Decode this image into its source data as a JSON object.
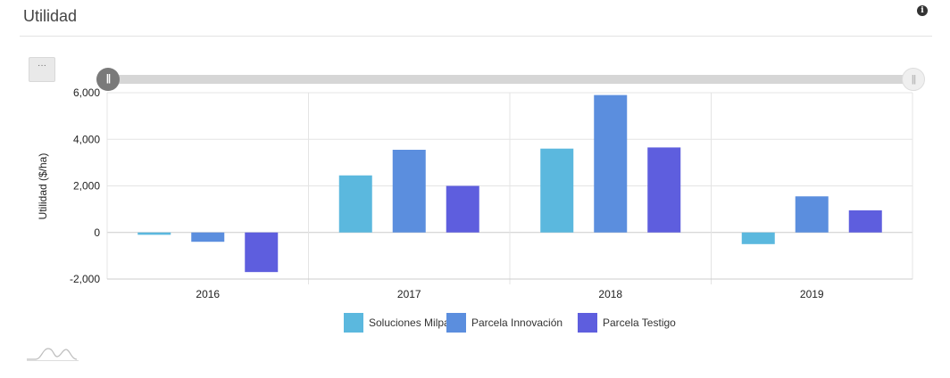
{
  "panel": {
    "title": "Utilidad",
    "info_icon": "info-icon",
    "menu_label": "···",
    "zoom_handle_glyph": "||"
  },
  "chart_data": {
    "type": "bar",
    "title": "",
    "ylabel": "Utilidad ($/ha)",
    "xlabel": "",
    "categories": [
      "2016",
      "2017",
      "2018",
      "2019"
    ],
    "series": [
      {
        "name": "Soluciones Milpa",
        "color": "#5bb8de",
        "values": [
          -100,
          2450,
          3600,
          -500
        ]
      },
      {
        "name": "Parcela Innovación",
        "color": "#5b8ede",
        "values": [
          -400,
          3550,
          5900,
          1550
        ]
      },
      {
        "name": "Parcela Testigo",
        "color": "#5e5ede",
        "values": [
          -1700,
          2000,
          3650,
          950
        ]
      }
    ],
    "ylim": [
      -2000,
      6000
    ],
    "yticks": [
      -2000,
      0,
      2000,
      4000,
      6000
    ],
    "ytick_labels": [
      "-2,000",
      "0",
      "2,000",
      "4,000",
      "6,000"
    ],
    "grid": true,
    "legend": "bottom-center"
  }
}
